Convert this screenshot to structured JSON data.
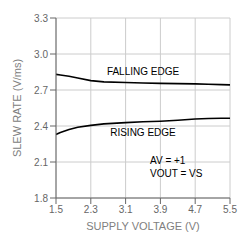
{
  "chart_data": {
    "type": "line",
    "xlabel": "SUPPLY VOLTAGE (V)",
    "ylabel": "SLEW RATE (V/ms)",
    "series": [
      {
        "name": "FALLING EDGE",
        "color": "#000000",
        "x": [
          1.5,
          1.6,
          1.8,
          2.0,
          2.3,
          2.6,
          3.1,
          3.5,
          3.9,
          4.3,
          4.7,
          5.0,
          5.3,
          5.5
        ],
        "values": [
          2.83,
          2.825,
          2.815,
          2.8,
          2.778,
          2.768,
          2.762,
          2.758,
          2.755,
          2.753,
          2.751,
          2.748,
          2.745,
          2.743
        ]
      },
      {
        "name": "RISING EDGE",
        "color": "#000000",
        "x": [
          1.5,
          1.6,
          1.8,
          2.0,
          2.3,
          2.6,
          3.1,
          3.5,
          3.9,
          4.3,
          4.7,
          5.0,
          5.3,
          5.5
        ],
        "values": [
          2.33,
          2.345,
          2.37,
          2.39,
          2.405,
          2.418,
          2.428,
          2.435,
          2.44,
          2.448,
          2.458,
          2.462,
          2.464,
          2.465
        ]
      }
    ],
    "annotations": [
      "AV = +1",
      "VOUT = VS"
    ],
    "xlim": [
      1.5,
      5.5
    ],
    "ylim": [
      1.8,
      3.3
    ],
    "xticks": [
      1.5,
      2.3,
      3.1,
      3.9,
      4.7,
      5.5
    ],
    "yticks": [
      1.8,
      2.1,
      2.4,
      2.7,
      {
        "value": 3.0,
        "label": "3.0"
      },
      3.3
    ],
    "grid": true
  }
}
